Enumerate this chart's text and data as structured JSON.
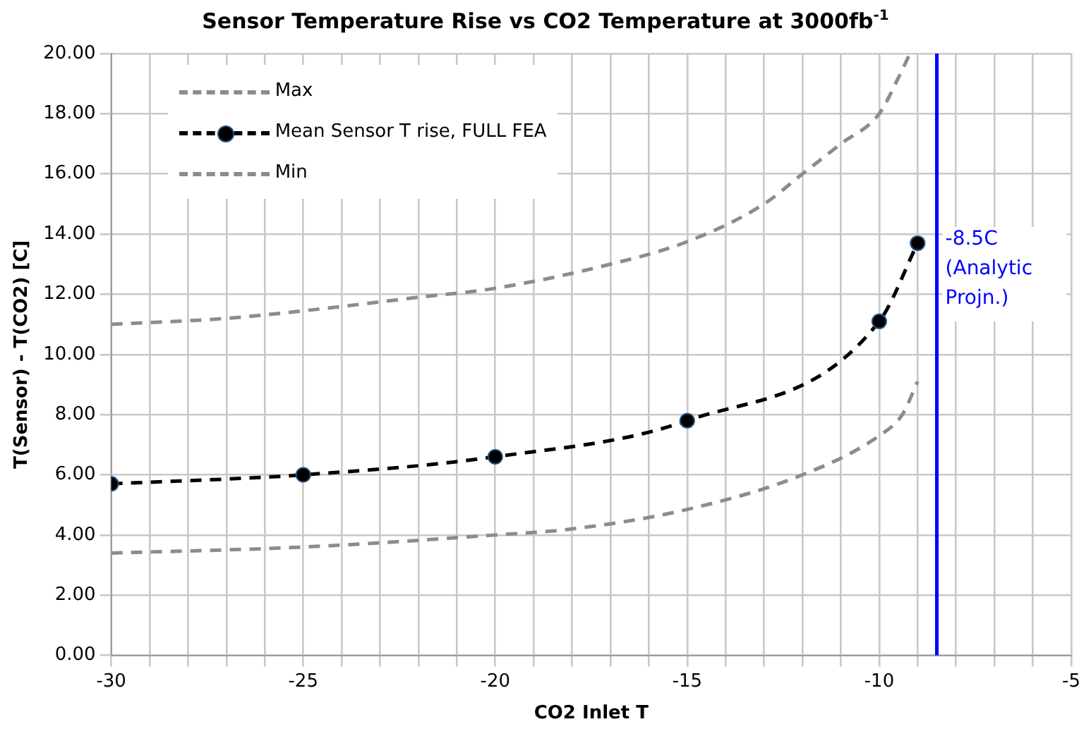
{
  "chart_data": {
    "type": "line",
    "title": "Sensor Temperature Rise vs CO2 Temperature at 3000fb$^{-1}$",
    "xlabel": "CO2 Inlet T",
    "ylabel": "T(Sensor) - T(CO2) [C]",
    "xlim": [
      -30,
      -5
    ],
    "xticks": [
      -30,
      {
        "value": -29,
        "label": null
      },
      {
        "value": -28,
        "label": null
      },
      {
        "value": -27,
        "label": null
      },
      {
        "value": -26,
        "label": null
      },
      -25,
      {
        "value": -24,
        "label": null
      },
      {
        "value": -23,
        "label": null
      },
      {
        "value": -22,
        "label": null
      },
      {
        "value": -21,
        "label": null
      },
      -20,
      {
        "value": -19,
        "label": null
      },
      {
        "value": -18,
        "label": null
      },
      {
        "value": -17,
        "label": null
      },
      {
        "value": -16,
        "label": null
      },
      -15,
      {
        "value": -14,
        "label": null
      },
      {
        "value": -13,
        "label": null
      },
      {
        "value": -12,
        "label": null
      },
      {
        "value": -11,
        "label": null
      },
      -10,
      {
        "value": -9,
        "label": null
      },
      {
        "value": -8,
        "label": null
      },
      {
        "value": -7,
        "label": null
      },
      {
        "value": -6,
        "label": null
      },
      -5
    ],
    "ylim": [
      0,
      20
    ],
    "yticks": [
      {
        "value": 0,
        "label": "0.00"
      },
      {
        "value": 2,
        "label": "2.00"
      },
      {
        "value": 4,
        "label": "4.00"
      },
      {
        "value": 6,
        "label": "6.00"
      },
      {
        "value": 8,
        "label": "8.00"
      },
      {
        "value": 10,
        "label": "10.00"
      },
      {
        "value": 12,
        "label": "12.00"
      },
      {
        "value": 14,
        "label": "14.00"
      },
      {
        "value": 16,
        "label": "16.00"
      },
      {
        "value": 18,
        "label": "18.00"
      },
      {
        "value": 20,
        "label": "20.00"
      }
    ],
    "grid": true,
    "legend": "top left",
    "line_style": "dashed",
    "series": [
      {
        "name": "Max",
        "color": "#8c8c8c",
        "marker": "none",
        "x": [
          -30,
          -27,
          -25,
          -22,
          -20,
          -17,
          -15,
          -13,
          -12,
          -11,
          -10,
          -9.5,
          -9.2
        ],
        "values": [
          11.0,
          11.2,
          11.45,
          11.9,
          12.2,
          13.0,
          13.75,
          15.0,
          16.0,
          17.0,
          18.0,
          19.2,
          20.0
        ]
      },
      {
        "name": "Mean Sensor T rise, FULL FEA",
        "color": "#000000",
        "marker": "circle",
        "x": [
          -30,
          -25,
          -20,
          -15,
          -10,
          -9
        ],
        "values": [
          5.7,
          6.0,
          6.6,
          7.8,
          11.1,
          13.7
        ]
      },
      {
        "name": "Min",
        "color": "#8c8c8c",
        "marker": "none",
        "x": [
          -30,
          -25,
          -20,
          -18,
          -15,
          -12,
          -10,
          -9.4,
          -9.0
        ],
        "values": [
          3.4,
          3.6,
          4.0,
          4.2,
          4.85,
          6.0,
          7.3,
          8.0,
          9.1
        ]
      }
    ],
    "ref_lines": [
      {
        "axis": "x",
        "value": -8.5,
        "label": "-8.5C (Analytic Projn.)",
        "color": "#0000ff",
        "line_style": "solid"
      }
    ]
  }
}
